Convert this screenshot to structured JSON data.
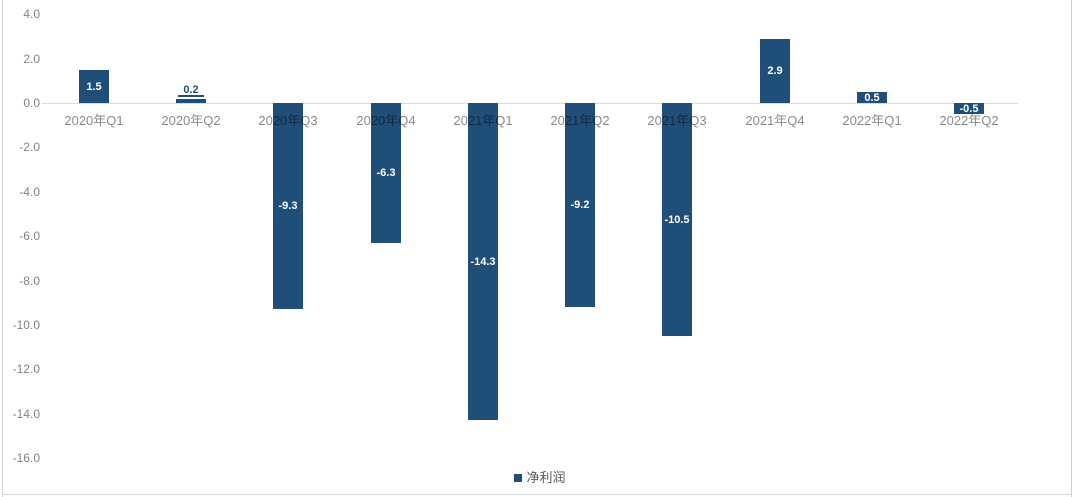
{
  "chart_data": {
    "type": "bar",
    "title": "",
    "categories": [
      "2020年Q1",
      "2020年Q2",
      "2020年Q3",
      "2020年Q4",
      "2021年Q1",
      "2021年Q2",
      "2021年Q3",
      "2021年Q4",
      "2022年Q1",
      "2022年Q2"
    ],
    "series": [
      {
        "name": "净利润",
        "values": [
          1.5,
          0.2,
          -9.3,
          -6.3,
          -14.3,
          -9.2,
          -10.5,
          2.9,
          0.5,
          -0.5
        ]
      }
    ],
    "value_labels": [
      "1.5",
      "0.2",
      "-9.3",
      "-6.3",
      "-14.3",
      "-9.2",
      "-10.5",
      "2.9",
      "0.5",
      "-0.5"
    ],
    "y_axis": {
      "tick_labels": [
        "4.0",
        "2.0",
        "0.0",
        "-2.0",
        "-4.0",
        "-6.0",
        "-8.0",
        "-10.0",
        "-12.0",
        "-14.0",
        "-16.0"
      ],
      "tick_values": [
        4,
        2,
        0,
        -2,
        -4,
        -6,
        -8,
        -10,
        -12,
        -14,
        -16
      ],
      "ylim": [
        -16,
        4
      ]
    },
    "grid": false,
    "legend": {
      "label": "净利润",
      "position": "bottom-center"
    },
    "colors": {
      "bar": "#1F4E79",
      "axis_line": "#d9d9d9",
      "value_label_inside": "#ffffff",
      "value_label_outside": "#1F4E79",
      "legend_text": "#595959"
    }
  }
}
